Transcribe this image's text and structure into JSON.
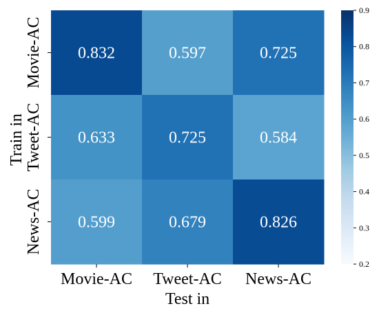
{
  "chart_data": {
    "type": "heatmap",
    "x_categories": [
      "Movie-AC",
      "Tweet-AC",
      "News-AC"
    ],
    "y_categories": [
      "Movie-AC",
      "Tweet-AC",
      "News-AC"
    ],
    "values": [
      [
        0.832,
        0.597,
        0.725
      ],
      [
        0.633,
        0.725,
        0.584
      ],
      [
        0.599,
        0.679,
        0.826
      ]
    ],
    "value_labels": [
      [
        "0.832",
        "0.597",
        "0.725"
      ],
      [
        "0.633",
        "0.725",
        "0.584"
      ],
      [
        "0.599",
        "0.679",
        "0.826"
      ]
    ],
    "xlabel": "Test in",
    "ylabel": "Train in",
    "colormap": "Blues",
    "vmin": 0.2,
    "vmax": 0.9,
    "colorbar_ticks": [
      0.2,
      0.3,
      0.4,
      0.5,
      0.6,
      0.7,
      0.8,
      0.9
    ],
    "colorbar_tick_labels": [
      "0.2",
      "0.3",
      "0.4",
      "0.5",
      "0.6",
      "0.7",
      "0.8",
      "0.9"
    ],
    "annotation_color": "#ffffff",
    "grid": false,
    "colorbar": "right"
  }
}
